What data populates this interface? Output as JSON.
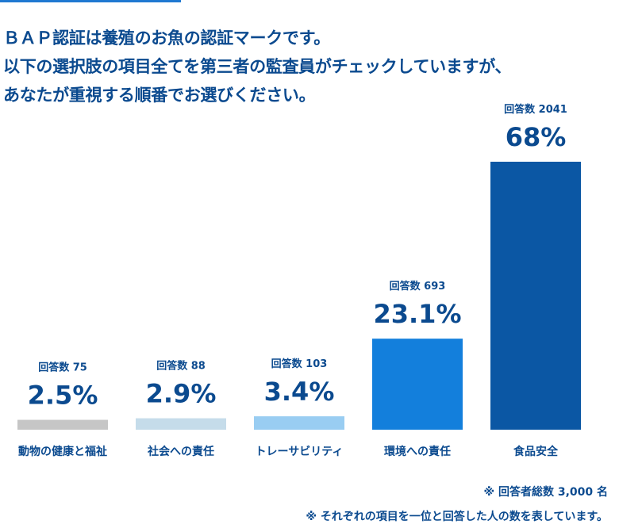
{
  "question": {
    "line1": "ＢＡＰ認証は養殖のお魚の認証マークです。",
    "line2": "以下の選択肢の項目全てを第三者の監査員がチェックしていますが、",
    "line3": "あなたが重視する順番でお選びください。"
  },
  "chart_data": {
    "type": "bar",
    "categories": [
      "動物の健康と福祉",
      "社会への責任",
      "トレーサビリティ",
      "環境への責任",
      "食品安全"
    ],
    "values": [
      2.5,
      2.9,
      3.4,
      23.1,
      68
    ],
    "value_labels": [
      "2.5%",
      "2.9%",
      "3.4%",
      "23.1%",
      "68%"
    ],
    "count_labels": [
      "回答数 75",
      "回答数 88",
      "回答数 103",
      "回答数 693",
      "回答数 2041"
    ],
    "counts": [
      75,
      88,
      103,
      693,
      2041
    ],
    "colors": [
      "#c6c6c6",
      "#c5dcea",
      "#99cdf2",
      "#137fdc",
      "#0b57a4"
    ],
    "ylim": [
      0,
      68
    ],
    "grid": false,
    "legend": "none"
  },
  "footnotes": {
    "total": "※ 回答者総数 3,000 名",
    "note": "※ それぞれの項目を一位と回答した人の数を表しています。"
  }
}
